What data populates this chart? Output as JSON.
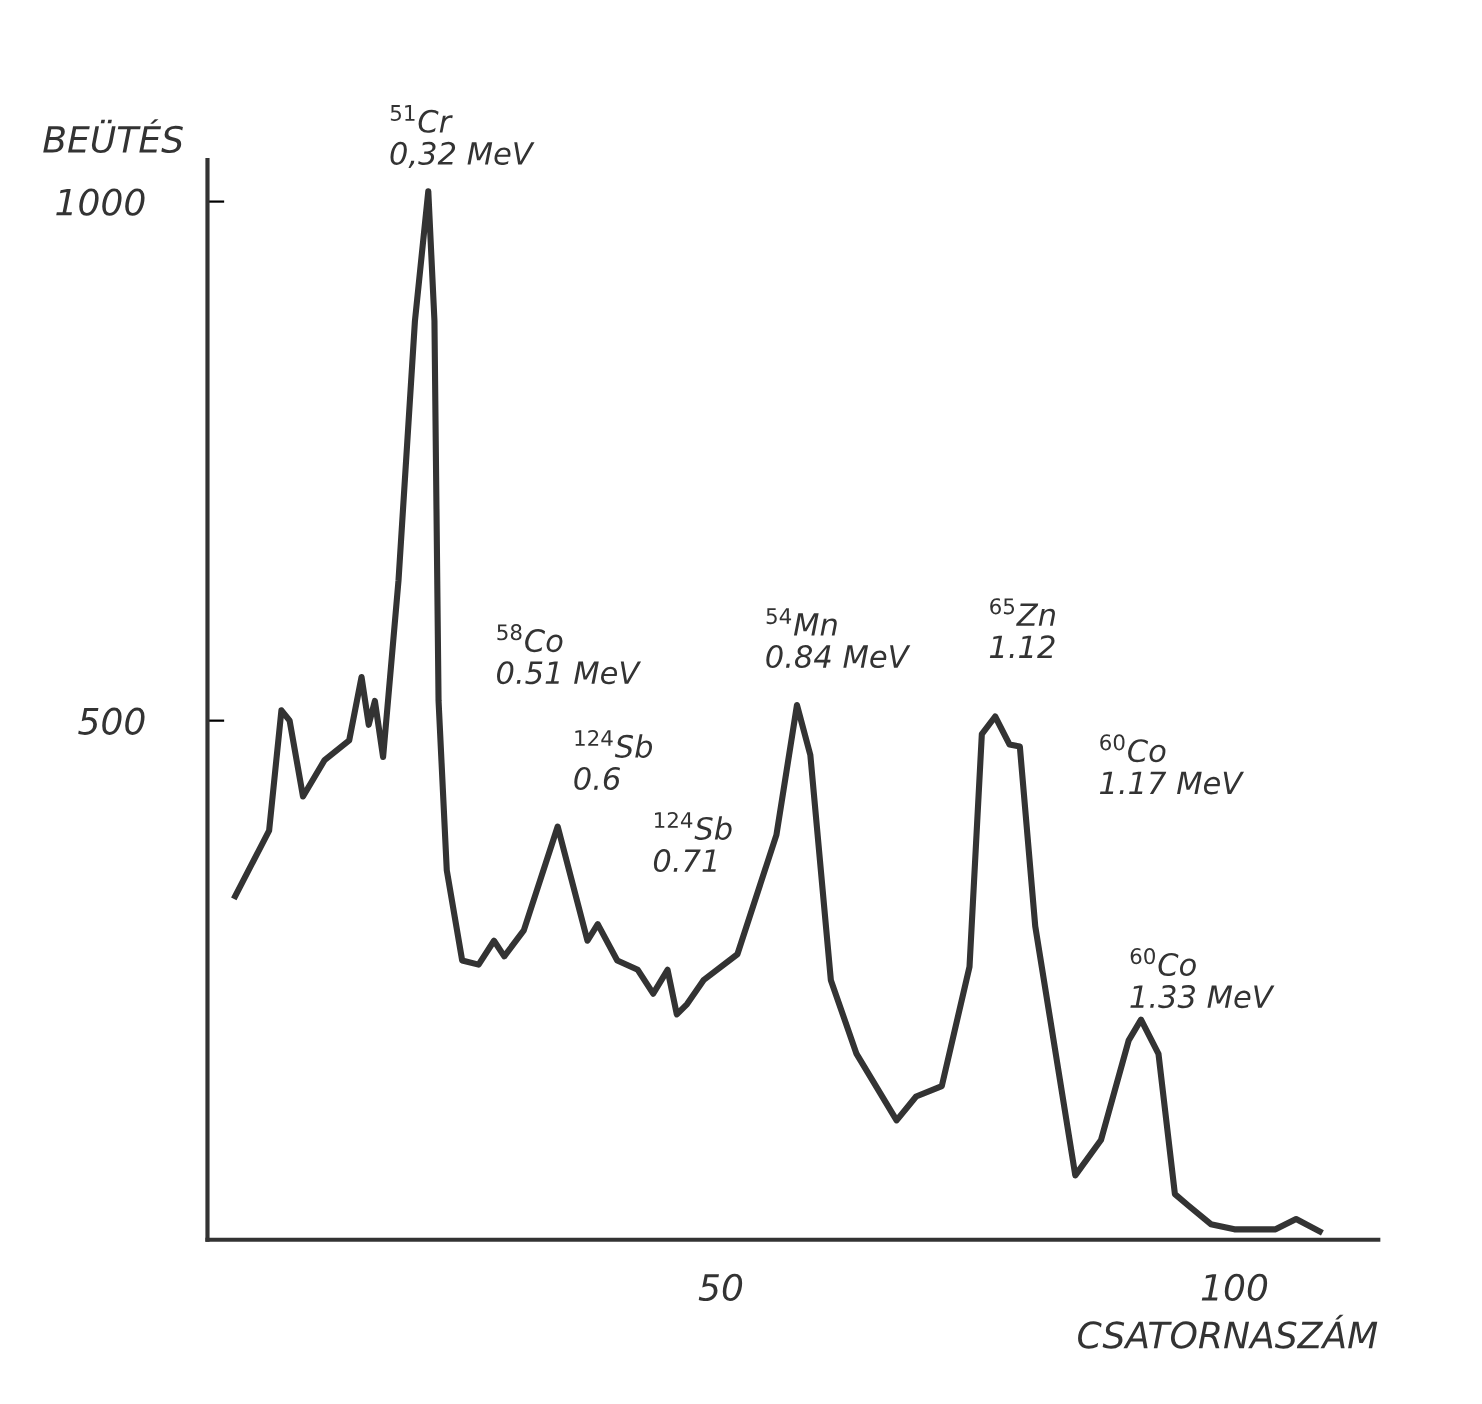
{
  "chart_data": {
    "type": "line",
    "xlabel": "CSATORNASZÁM",
    "ylabel": "BEÜTÉS",
    "color": "#333333",
    "x": [
      2.7,
      6.0,
      7.2,
      8.0,
      9.3,
      11.4,
      13.8,
      15.0,
      15.7,
      16.3,
      17.1,
      18.6,
      20.2,
      21.5,
      22.1,
      22.5,
      23.3,
      24.8,
      26.4,
      27.9,
      28.9,
      30.8,
      34.1,
      37.0,
      38.0,
      39.9,
      41.9,
      43.4,
      44.8,
      45.7,
      46.7,
      48.3,
      51.6,
      55.4,
      57.4,
      58.7,
      60.7,
      63.2,
      67.1,
      69.0,
      71.5,
      74.2,
      75.4,
      76.7,
      78.1,
      79.1,
      80.6,
      84.5,
      87.0,
      89.7,
      90.9,
      92.6,
      94.2,
      95.5,
      97.7,
      100,
      104,
      106,
      108.3
    ],
    "values": [
      331,
      394,
      510,
      500,
      427,
      462,
      481,
      542,
      496,
      519,
      465,
      635,
      885,
      1010,
      885,
      519,
      356,
      269,
      265,
      288,
      273,
      298,
      398,
      288,
      304,
      269,
      260,
      237,
      260,
      217,
      227,
      250,
      275,
      390,
      515,
      467,
      250,
      179,
      115,
      138,
      148,
      263,
      487,
      504,
      477,
      475,
      302,
      62,
      96,
      192,
      212,
      179,
      44,
      33,
      15,
      10,
      10,
      20,
      8
    ],
    "xlim": [
      0,
      114
    ],
    "ylim": [
      0,
      1040
    ],
    "xticks": [
      50,
      100
    ],
    "yticks": [
      500,
      1000
    ],
    "annotations": [
      "$^{51}$Cr\n0,32 MeV",
      "$^{58}$Co\n0.51 MeV",
      "$^{124}$Sb\n0.6",
      "$^{124}$Sb\n0.71",
      "$^{54}$Mn\n0.84 MeV",
      "$^{65}$Zn\n1.12",
      "$^{60}$Co\n1.17 MeV",
      "$^{60}$Co\n1.33 MeV"
    ]
  }
}
